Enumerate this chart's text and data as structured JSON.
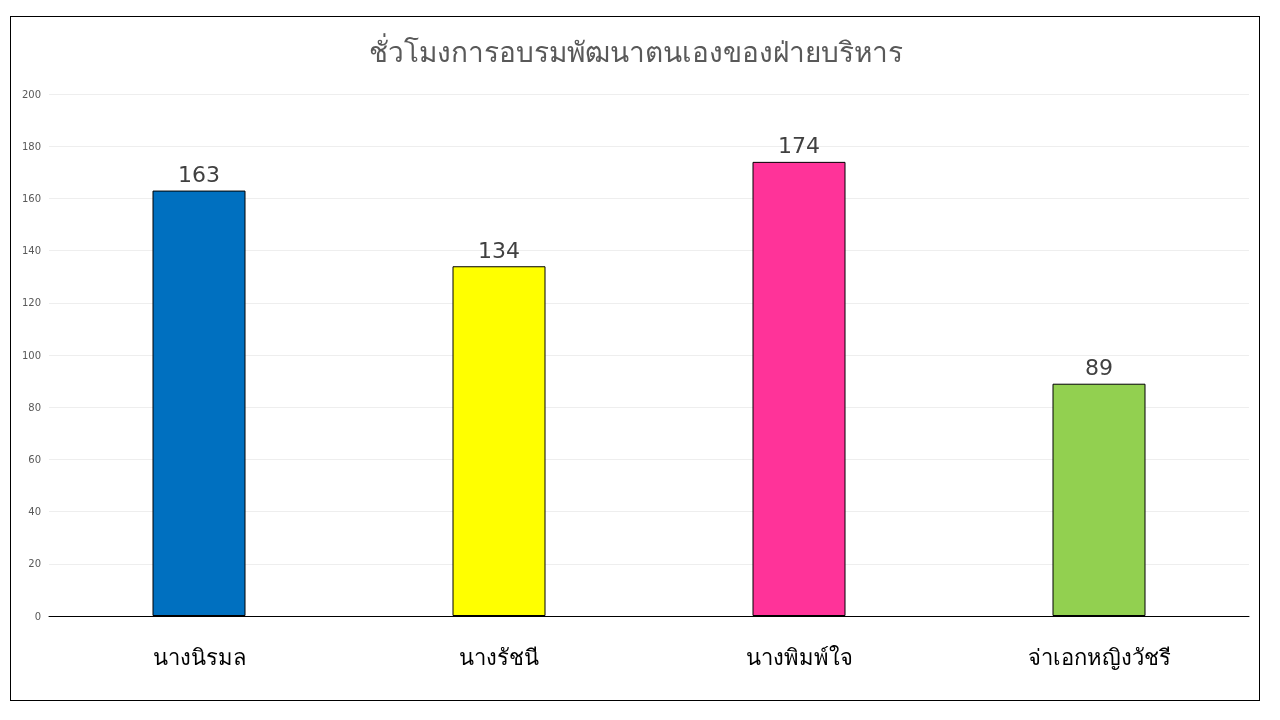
{
  "chart_data": {
    "type": "bar",
    "title": "ชั่วโมงการอบรมพัฒนาตนเองของฝ่ายบริหาร",
    "categories": [
      "นางนิรมล",
      "นางรัชนี",
      "นางพิมพ์ใจ",
      "จ่าเอกหญิงวัชรี"
    ],
    "values": [
      163,
      134,
      174,
      89
    ],
    "colors": [
      "#0070c0",
      "#ffff00",
      "#ff3399",
      "#92d050"
    ],
    "ylim": [
      0,
      200
    ],
    "yticks": [
      0,
      20,
      40,
      60,
      80,
      100,
      120,
      140,
      160,
      180,
      200
    ],
    "grid": "y",
    "data_labels": true
  }
}
